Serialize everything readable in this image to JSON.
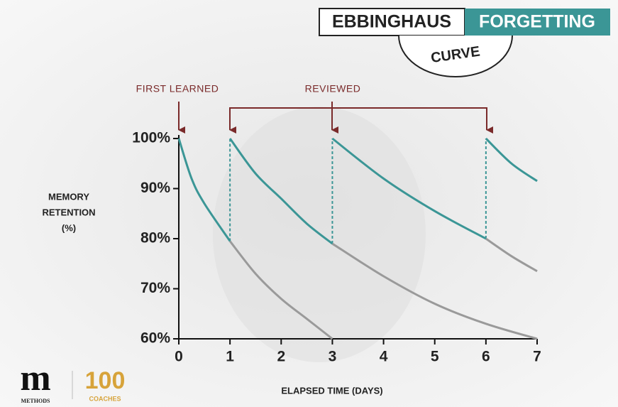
{
  "chart_data": {
    "type": "line",
    "title_parts": [
      "EBBINGHAUS",
      "FORGETTING",
      "CURVE"
    ],
    "annotations": [
      "FIRST LEARNED",
      "REVIEWED"
    ],
    "y_label": [
      "MEMORY",
      "RETENTION",
      "(%)"
    ],
    "x_label": "ELAPSED TIME (DAYS)",
    "xlim": [
      0,
      7
    ],
    "xticks": [
      0,
      1,
      2,
      3,
      4,
      5,
      6,
      7
    ],
    "ylim": [
      60,
      100
    ],
    "yticks": [
      {
        "value": 60,
        "label": "60%"
      },
      {
        "value": 70,
        "label": "70%"
      },
      {
        "value": 80,
        "label": "80%"
      },
      {
        "value": 90,
        "label": "90%"
      },
      {
        "value": 100,
        "label": "100%"
      }
    ],
    "series": [
      {
        "color": "#3b9696",
        "x": [
          0,
          0.25,
          0.5,
          1
        ],
        "values": [
          100,
          92,
          87,
          79.5
        ]
      },
      {
        "color": "#9a9a9a",
        "x": [
          1,
          1.5,
          2,
          2.5,
          3
        ],
        "values": [
          79.5,
          73,
          68,
          64,
          60
        ]
      },
      {
        "color": "#3b9696",
        "x": [
          1,
          1.5,
          2,
          2.5,
          3
        ],
        "values": [
          100,
          93,
          88,
          83,
          79
        ]
      },
      {
        "color": "#9a9a9a",
        "x": [
          3,
          4,
          5,
          6,
          7
        ],
        "values": [
          79,
          72.5,
          67,
          63,
          60
        ]
      },
      {
        "color": "#3b9696",
        "x": [
          3,
          4,
          5,
          6
        ],
        "values": [
          100,
          92,
          85.5,
          80
        ]
      },
      {
        "color": "#9a9a9a",
        "x": [
          6,
          6.5,
          7
        ],
        "values": [
          80,
          76.5,
          73.5
        ]
      },
      {
        "color": "#3b9696",
        "x": [
          6,
          6.5,
          7
        ],
        "values": [
          100,
          95,
          91.5
        ]
      }
    ]
  },
  "branding": {
    "logo_letter": "m",
    "logo_name": "METHODS",
    "badge_number": "100",
    "badge_text": "COACHES"
  }
}
